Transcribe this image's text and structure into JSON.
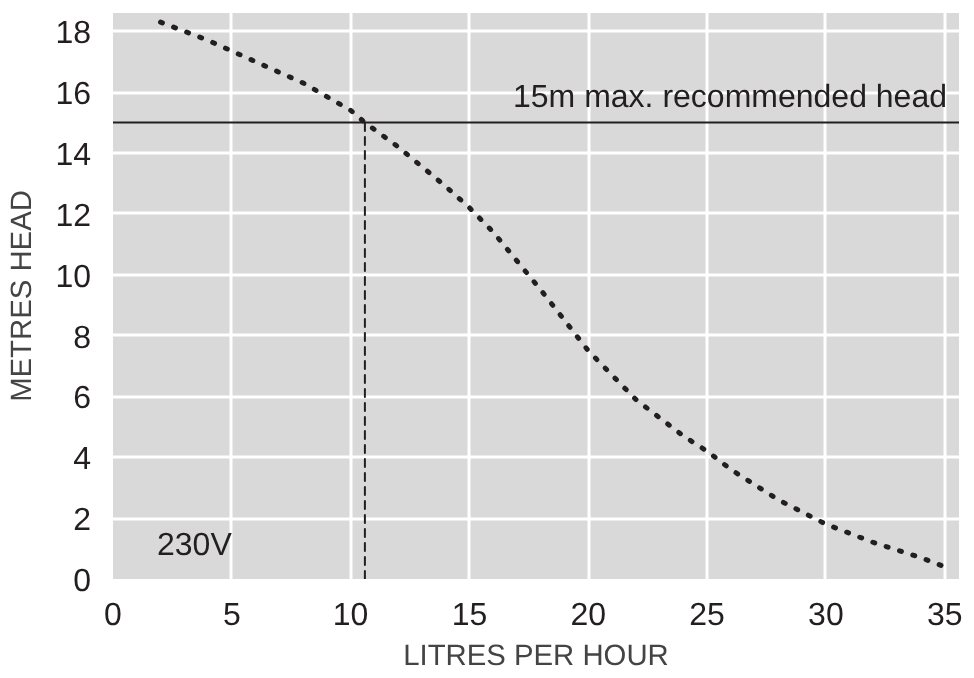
{
  "chart_data": {
    "type": "line",
    "xlabel": "LITRES PER HOUR",
    "ylabel": "METRES HEAD",
    "series": [
      {
        "color": "#231f20",
        "line_style": "dotted",
        "x": [
          2,
          4,
          6,
          8,
          10,
          10.6,
          12,
          14,
          15,
          16,
          18,
          20,
          22,
          24,
          25,
          26,
          28,
          30,
          32,
          34,
          35
        ],
        "values": [
          18.3,
          17.7,
          17.0,
          16.3,
          15.4,
          15,
          14.2,
          12.9,
          12.2,
          11.4,
          9.5,
          7.5,
          5.9,
          4.7,
          4.2,
          3.6,
          2.6,
          1.8,
          1.2,
          0.7,
          0.4
        ]
      },
      {
        "color": "#231f20",
        "line_style": "dashed",
        "x": [
          10.6,
          10.6
        ],
        "values": [
          0,
          15
        ]
      }
    ],
    "xlim": [
      0,
      35.6
    ],
    "ylim": [
      0,
      18.6
    ],
    "xticks": [
      0,
      5,
      10,
      15,
      20,
      25,
      30,
      35
    ],
    "yticks": [
      0,
      2,
      4,
      6,
      8,
      10,
      12,
      14,
      16,
      18
    ],
    "grid": true,
    "marker": "none",
    "ref_lines": [
      {
        "axis": "y",
        "value": 15,
        "label": "15m max. recommended head",
        "color": "#231f20"
      }
    ],
    "annotations": [
      "230V"
    ]
  }
}
